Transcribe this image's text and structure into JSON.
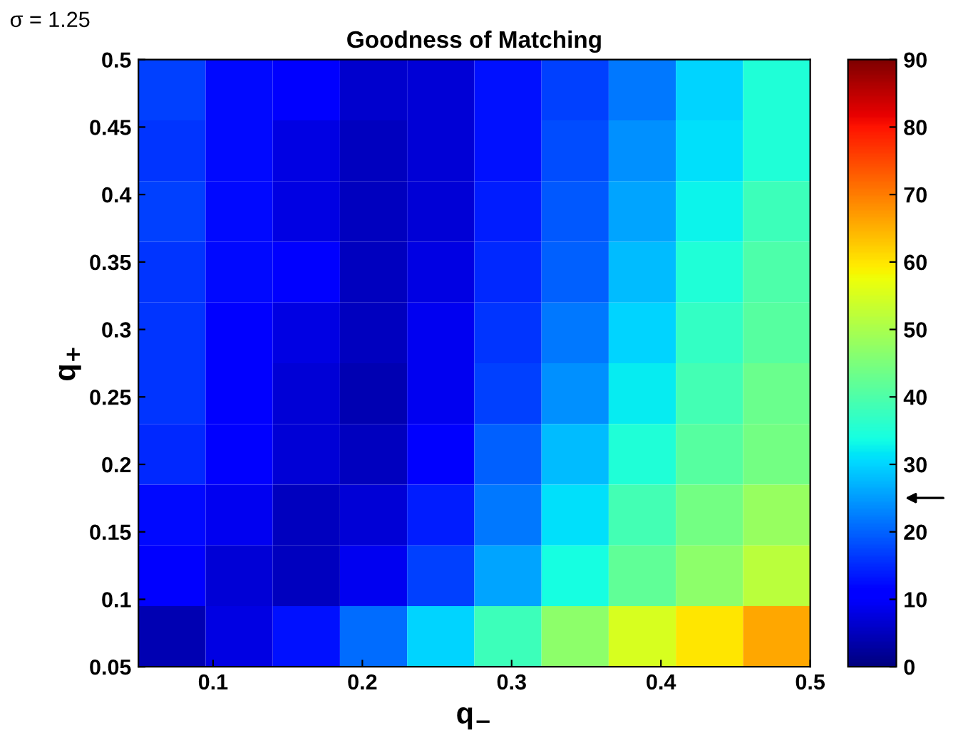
{
  "chart_data": {
    "type": "heatmap",
    "title": "Goodness of Matching",
    "xlabel": "q$_{−}$",
    "ylabel": "q$_{+}$",
    "annotations": [
      "σ = 1.25"
    ],
    "xlim": [
      0.05,
      0.5
    ],
    "ylim": [
      0.05,
      0.5
    ],
    "xticks": [
      0.1,
      0.2,
      0.3,
      0.4,
      0.5
    ],
    "yticks": [
      0.05,
      0.1,
      0.15,
      0.2,
      0.25,
      0.3,
      0.35,
      0.4,
      0.45,
      0.5
    ],
    "clim": [
      0,
      90
    ],
    "cticks": [
      0,
      10,
      20,
      30,
      40,
      50,
      60,
      70,
      80,
      90
    ],
    "cells": [
      [
        17,
        12,
        10,
        6,
        7,
        13,
        17,
        22,
        30,
        35
      ],
      [
        16,
        12,
        8,
        5,
        7,
        13,
        18,
        24,
        31,
        35
      ],
      [
        17,
        12,
        8,
        5,
        7,
        14,
        19,
        26,
        33,
        38
      ],
      [
        16,
        12,
        10,
        5,
        8,
        15,
        20,
        28,
        35,
        40
      ],
      [
        16,
        11,
        8,
        5,
        9,
        16,
        22,
        30,
        37,
        41
      ],
      [
        16,
        11,
        7,
        4,
        9,
        17,
        24,
        32,
        39,
        43
      ],
      [
        15,
        11,
        7,
        5,
        11,
        20,
        28,
        35,
        41,
        44
      ],
      [
        12,
        9,
        5,
        7,
        14,
        22,
        31,
        39,
        44,
        48
      ],
      [
        11,
        7,
        5,
        9,
        17,
        26,
        34,
        42,
        47,
        52
      ],
      [
        4,
        8,
        13,
        21,
        30,
        38,
        47,
        55,
        60,
        66
      ]
    ]
  }
}
